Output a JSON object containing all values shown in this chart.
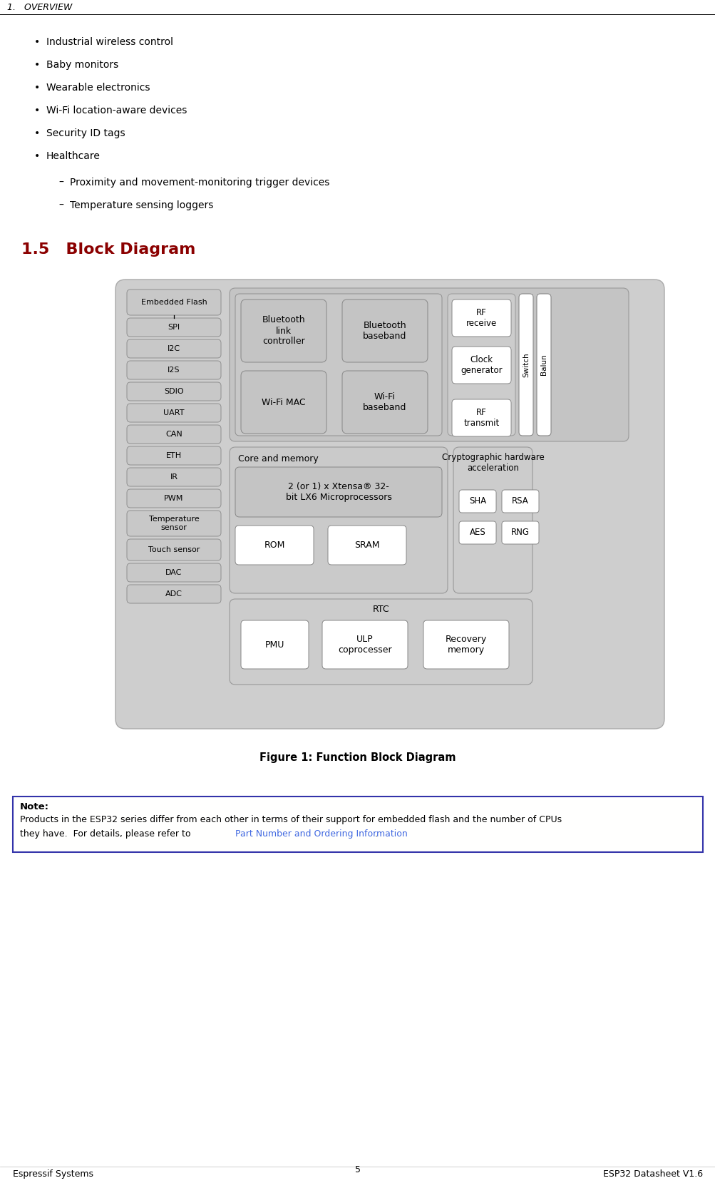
{
  "page_bg": "#ffffff",
  "header_text": "1.   OVERVIEW",
  "section_title": "1.5   Block Diagram",
  "section_title_color": "#8B0000",
  "section_title_fontsize": 16,
  "bullet_items": [
    "Industrial wireless control",
    "Baby monitors",
    "Wearable electronics",
    "Wi-Fi location-aware devices",
    "Security ID tags",
    "Healthcare"
  ],
  "sub_items": [
    "Proximity and movement-monitoring trigger devices",
    "Temperature sensing loggers"
  ],
  "figure_caption": "Figure 1: Function Block Diagram",
  "note_title": "Note:",
  "note_link_text": "Part Number and Ordering Information",
  "note_link_color": "#4169E1",
  "note_body1": "Products in the ESP32 series differ from each other in terms of their support for embedded flash and the number of CPUs",
  "note_body2": "they have.  For details, please refer to ",
  "note_body2_end": ".",
  "footer_left": "Espressif Systems",
  "footer_center": "5",
  "footer_right": "ESP32 Datasheet V1.6",
  "left_col_items": [
    "Embedded Flash",
    "SPI",
    "I2C",
    "I2S",
    "SDIO",
    "UART",
    "CAN",
    "ETH",
    "IR",
    "PWM",
    "Temperature\nsensor",
    "Touch sensor",
    "DAC",
    "ADC"
  ],
  "outer_fc": "#CECECE",
  "bt_area_fc": "#C2C2C2",
  "small_box_fc": "#C8C8C8",
  "white_fc": "#FFFFFF",
  "rf_area_fc": "#CCCCCC",
  "core_fc": "#C4C4C4",
  "crypt_fc": "#CCCCCC",
  "rtc_fc": "#CCCCCC"
}
